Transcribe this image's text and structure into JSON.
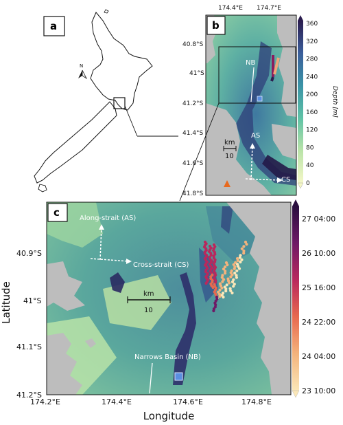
{
  "panel_a": {
    "letter": "a",
    "north_label": "N"
  },
  "panel_b": {
    "letter": "b",
    "top_ticks": [
      "174.4°E",
      "174.7°E"
    ],
    "lat_ticks": [
      "40.8°S",
      "41°S",
      "41.2°S",
      "41.4°S",
      "41.6°S",
      "41.8°S"
    ],
    "label_nb": "NB",
    "label_as": "AS",
    "label_cs": "CS",
    "scale_unit": "km",
    "scale_value": "10",
    "colorbar": {
      "title": "Depth [m]",
      "ticks": [
        "360",
        "320",
        "280",
        "240",
        "200",
        "160",
        "120",
        "80",
        "40",
        "0"
      ],
      "min": 0,
      "max": 360
    }
  },
  "panel_c": {
    "letter": "c",
    "xlabel": "Longitude",
    "ylabel": "Latitude",
    "x_ticks": [
      "174.2°E",
      "174.4°E",
      "174.6°E",
      "174.8°E"
    ],
    "y_ticks": [
      "40.9°S",
      "41°S",
      "41.1°S",
      "41.2°S"
    ],
    "label_along": "Along-strait (AS)",
    "label_cross": "Cross-strait (CS)",
    "label_basin": "Narrows Basin (NB)",
    "scale_unit": "km",
    "scale_value": "10",
    "colorbar": {
      "ticks": [
        "27 04:00",
        "26 10:00",
        "25 16:00",
        "24 22:00",
        "24 04:00",
        "23 10:00"
      ]
    }
  },
  "colors": {
    "land": "#bdbdbd",
    "deep_water": "#2d2a66",
    "shallow_water": "#e6f0a0",
    "sensor_marker": "#5b8ee0",
    "site_marker": "#e8691e"
  }
}
